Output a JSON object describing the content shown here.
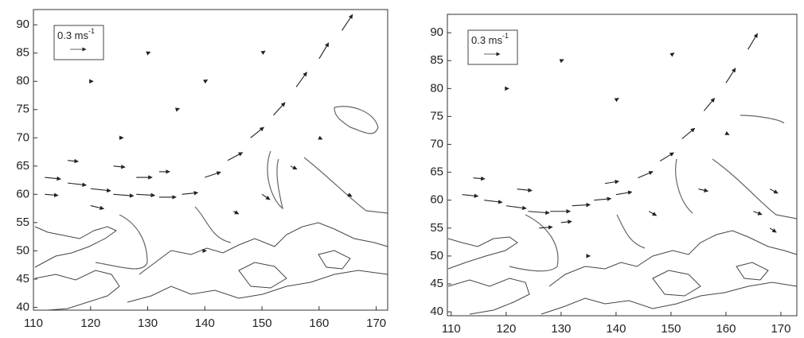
{
  "chart_data": [
    {
      "type": "quiver",
      "xlim": [
        110,
        172
      ],
      "ylim": [
        39.5,
        92.7
      ],
      "xticks": [
        110,
        120,
        130,
        140,
        150,
        160,
        170
      ],
      "yticks": [
        40,
        45,
        50,
        55,
        60,
        65,
        70,
        75,
        80,
        85,
        90
      ],
      "scale_label": "0.3 ms",
      "scale_label_sup": "-1",
      "color": "#222",
      "x": [
        112,
        116,
        120,
        124,
        128,
        132,
        136,
        112,
        120,
        128,
        140,
        144,
        148,
        152,
        156,
        160,
        164,
        120,
        130,
        140,
        125,
        150,
        160,
        140,
        150,
        145,
        116,
        124,
        132,
        135,
        155,
        165
      ],
      "y": [
        63,
        62,
        61,
        60,
        60,
        59.5,
        60,
        60,
        58,
        63,
        63,
        66,
        70,
        74,
        79,
        84,
        89,
        80,
        85,
        80,
        70,
        85,
        70,
        50,
        60,
        57,
        66,
        65,
        64,
        75,
        65,
        60
      ],
      "u": [
        0.3,
        0.35,
        0.38,
        0.38,
        0.35,
        0.32,
        0.3,
        0.25,
        0.25,
        0.3,
        0.3,
        0.28,
        0.25,
        0.22,
        0.2,
        0.18,
        0.2,
        0.05,
        0.05,
        0.05,
        0.08,
        0.06,
        0.06,
        0.03,
        0.15,
        0.1,
        0.2,
        0.22,
        0.2,
        0.06,
        0.12,
        0.08
      ],
      "v": [
        -0.03,
        -0.04,
        -0.04,
        -0.03,
        -0.02,
        0,
        0.03,
        -0.02,
        -0.06,
        0,
        0.1,
        0.15,
        0.2,
        0.24,
        0.28,
        0.3,
        0.3,
        0,
        0.02,
        0.03,
        0,
        0.04,
        -0.03,
        0,
        -0.1,
        -0.05,
        -0.02,
        -0.02,
        0,
        0.02,
        -0.06,
        -0.04
      ]
    },
    {
      "type": "quiver",
      "xlim": [
        109.3,
        172.9
      ],
      "ylim": [
        39.3,
        93.3
      ],
      "xticks": [
        110,
        120,
        130,
        140,
        150,
        160,
        170
      ],
      "yticks": [
        40,
        45,
        50,
        55,
        60,
        65,
        70,
        75,
        80,
        85,
        90
      ],
      "scale_label": "0.3 ms",
      "scale_label_sup": "-1",
      "color": "#222",
      "x": [
        112,
        116,
        120,
        124,
        128,
        132,
        136,
        140,
        114,
        122,
        130,
        144,
        148,
        152,
        156,
        160,
        164,
        168,
        120,
        130,
        140,
        150,
        160,
        135,
        155,
        165,
        168,
        126,
        138,
        146
      ],
      "y": [
        61,
        60,
        59,
        58,
        58,
        59,
        60,
        61,
        64,
        62,
        56,
        64,
        67,
        71,
        76,
        81,
        87,
        62,
        80,
        85,
        78,
        86,
        72,
        50,
        62,
        58,
        55,
        55,
        63,
        58
      ],
      "u": [
        0.3,
        0.34,
        0.38,
        0.4,
        0.38,
        0.34,
        0.32,
        0.3,
        0.22,
        0.28,
        0.2,
        0.28,
        0.26,
        0.24,
        0.2,
        0.18,
        0.18,
        0.15,
        0.05,
        0.05,
        0.05,
        0.06,
        0.06,
        0.03,
        0.18,
        0.16,
        0.12,
        0.25,
        0.26,
        0.14
      ],
      "v": [
        -0.03,
        -0.04,
        -0.05,
        -0.03,
        0,
        0.02,
        0.03,
        0.05,
        -0.02,
        -0.03,
        0.02,
        0.12,
        0.16,
        0.2,
        0.24,
        0.28,
        0.3,
        -0.08,
        0,
        0.02,
        0.03,
        0.04,
        -0.03,
        0,
        -0.04,
        -0.06,
        -0.08,
        0.02,
        0.04,
        -0.08
      ]
    }
  ]
}
